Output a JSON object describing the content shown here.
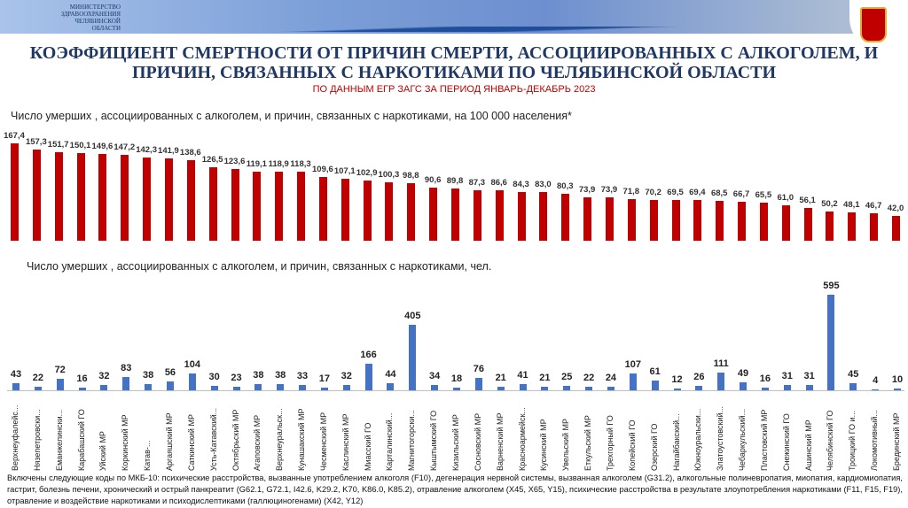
{
  "header": {
    "ministry": [
      "МИНИСТЕРСТВО",
      "ЗДРАВООХРАНЕНИЯ",
      "ЧЕЛЯБИНСКОЙ ОБЛАСТИ"
    ],
    "title": "КОЭФФИЦИЕНТ СМЕРТНОСТИ  ОТ ПРИЧИН СМЕРТИ, АССОЦИИРОВАННЫХ С АЛКОГОЛЕМ, И ПРИЧИН, СВЯЗАННЫХ С НАРКОТИКАМИ ПО ЧЕЛЯБИНСКОЙ ОБЛАСТИ",
    "subtitle": "ПО ДАННЫМ ЕГР ЗАГС ЗА ПЕРИОД ЯНВАРЬ-ДЕКАБРЬ 2023"
  },
  "chart_data": [
    {
      "type": "bar",
      "title": "Число умерших , ассоциированных с алкоголем, и причин, связанных с наркотиками, на 100 000 населения*",
      "color": "#c00000",
      "values": [
        167.4,
        157.3,
        151.7,
        150.1,
        149.6,
        147.2,
        142.3,
        141.9,
        138.6,
        126.5,
        123.6,
        119.1,
        118.9,
        118.3,
        109.6,
        107.1,
        102.9,
        100.3,
        98.8,
        90.6,
        89.8,
        87.3,
        86.6,
        84.3,
        83.0,
        80.3,
        73.9,
        73.9,
        71.8,
        70.2,
        69.5,
        69.4,
        68.5,
        66.7,
        65.5,
        61.0,
        56.1,
        50.2,
        48.1,
        46.7,
        42.0
      ],
      "labels": [
        "167,4",
        "157,3",
        "151,7",
        "150,1",
        "149,6",
        "147,2",
        "142,3",
        "141,9",
        "138,6",
        "126,5",
        "123,6",
        "119,1",
        "118,9",
        "118,3",
        "109,6",
        "107,1",
        "102,9",
        "100,3",
        "98,8",
        "90,6",
        "89,8",
        "87,3",
        "86,6",
        "84,3",
        "83,0",
        "80,3",
        "73,9",
        "73,9",
        "71,8",
        "70,2",
        "69,5",
        "69,4",
        "68,5",
        "66,7",
        "65,5",
        "61,0",
        "56,1",
        "50,2",
        "48,1",
        "46,7",
        "42,0"
      ]
    },
    {
      "type": "bar",
      "title": "Число умерших , ассоциированных с алкоголем, и причин, связанных с наркотиками, чел.",
      "color": "#4472c4",
      "categories": [
        "Верхнеуфалейс...",
        "Нязепетровски...",
        "Еманжелински...",
        "Карабашский ГО",
        "Уйский МР",
        "Коркинский МР",
        "Катав-...",
        "Аргаяшский МР",
        "Саткинский МР",
        "Усть-Катавский...",
        "Октябрьский МР",
        "Агаповский МР",
        "Верхнеуральск...",
        "Кунашакский МР",
        "Чесменский МР",
        "Каслинский МР",
        "Миасский ГО",
        "Карталинский...",
        "Магнитогорски...",
        "Кыштымский ГО",
        "Кизильский МР",
        "Сосновский МР",
        "Варненский МР",
        "Красноармейск...",
        "Кусинский МР",
        "Увельский МР",
        "Еткульский МР",
        "Трехгорный ГО",
        "Копейский ГО",
        "Озерский ГО",
        "Нагайбакский...",
        "Южноуральски...",
        "Златоустовский...",
        "Чебаркульский...",
        "Пластовский МР",
        "Снежинский ГО",
        "Ашинский МР",
        "Челябинский ГО",
        "Троицкий ГО и...",
        "Локомотивный...",
        "Брединский МР"
      ],
      "values": [
        43,
        22,
        72,
        16,
        32,
        83,
        38,
        56,
        104,
        30,
        23,
        38,
        38,
        33,
        17,
        32,
        166,
        44,
        405,
        34,
        18,
        76,
        21,
        41,
        21,
        25,
        22,
        24,
        107,
        61,
        12,
        26,
        111,
        49,
        16,
        31,
        31,
        595,
        45,
        4,
        10
      ]
    }
  ],
  "note": "Включены следующие коды по МКБ-10: психические расстройства, вызванные употреблением алкоголя (F10), дегенерация нервной системы, вызванная алкоголем (G31.2), алкогольные полиневропатия, миопатия, кардиомиопатия, гастрит, болезнь печени, хронический и острый панкреатит (G62.1, G72.1, I42.6, K29.2, K70, K86.0, K85.2), отравление алкоголем (X45, X65, Y15), психические расстройства в результате злоупотребления наркотиками (F11, F15, F19), отравление и воздействие наркотиками и психодислептиками (галлюциногенами) (X42, Y12)"
}
